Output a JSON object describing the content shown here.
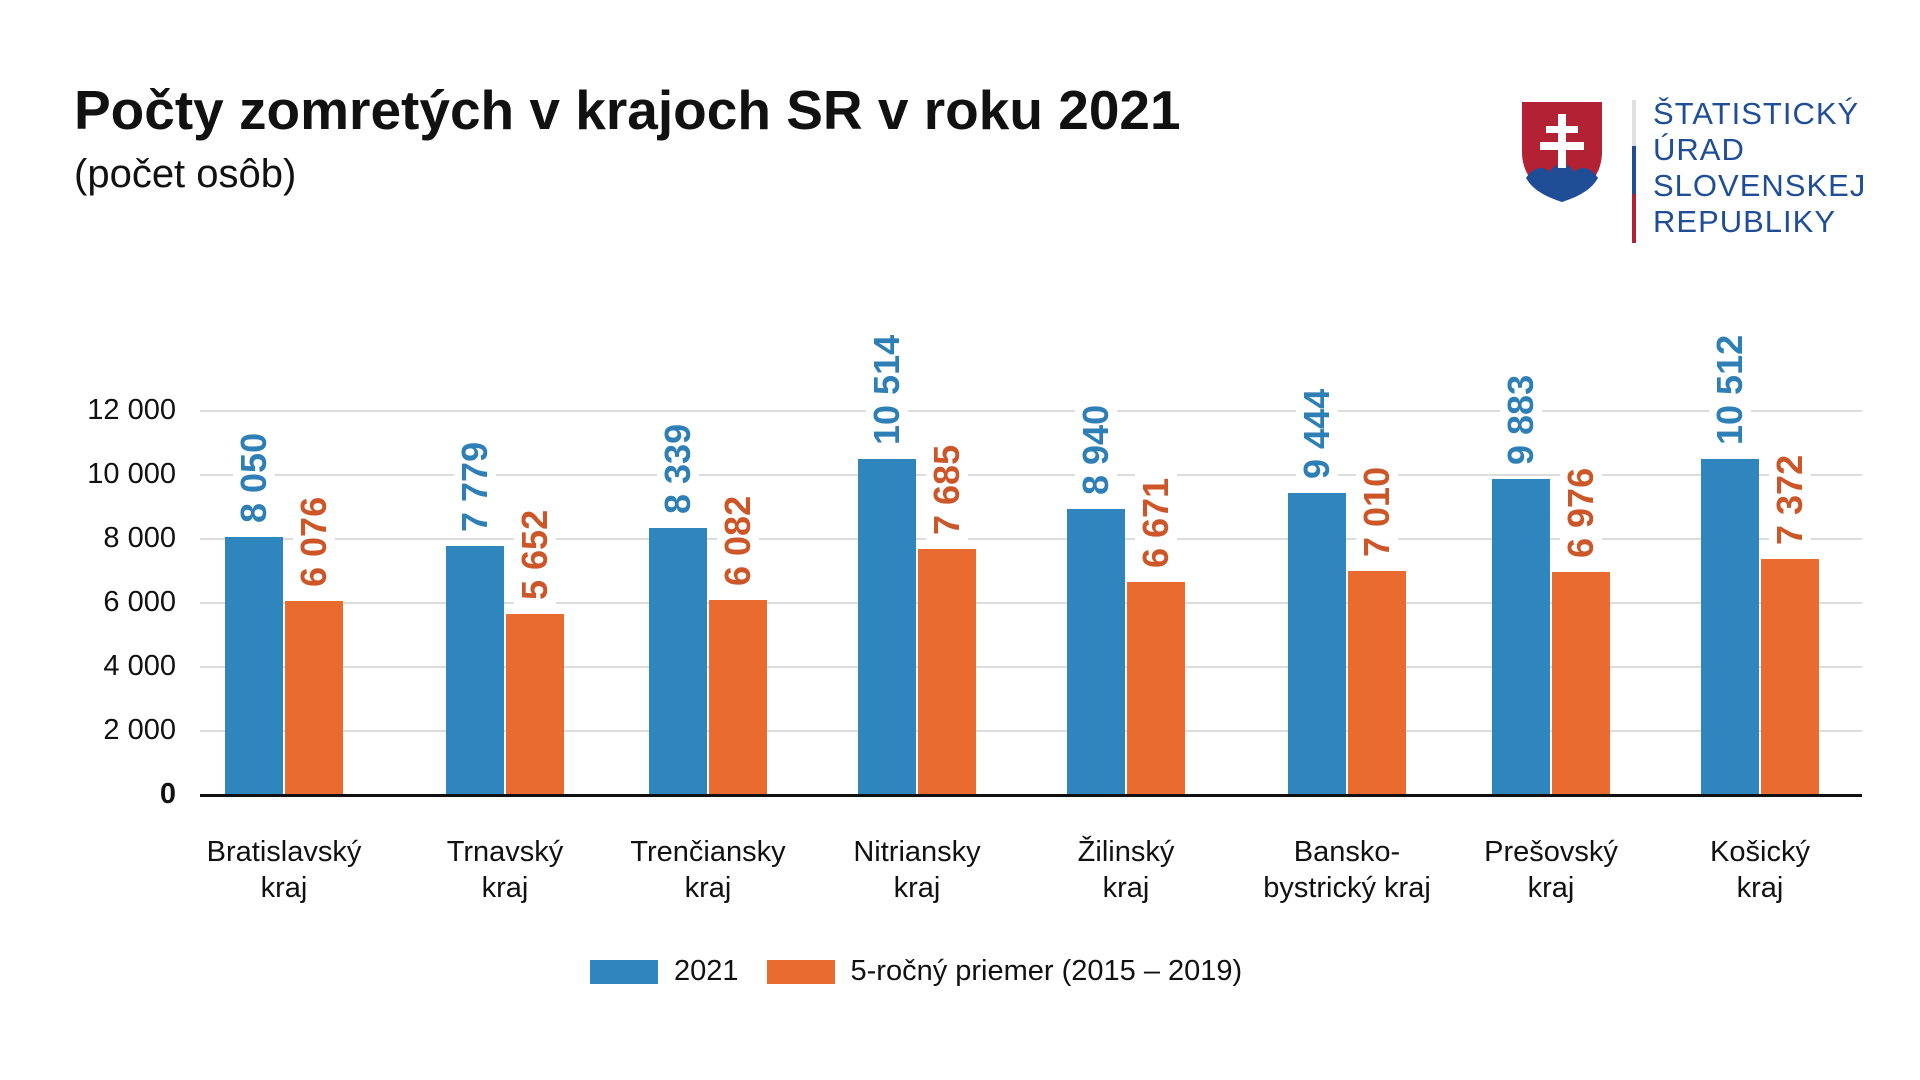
{
  "header": {
    "title": "Počty zomretých v krajoch SR v roku 2021",
    "subtitle": "(počet osôb)"
  },
  "logo": {
    "icon": "slovak-coat-of-arms-icon",
    "lines": [
      "ŠTATISTICKÝ",
      "ÚRAD",
      "SLOVENSKEJ",
      "REPUBLIKY"
    ],
    "colors": {
      "red": "#b22234",
      "blue": "#1f4e96",
      "text": "#1f4e96"
    }
  },
  "colors": {
    "series_2021": "#2e86bd",
    "series_avg": "#ea6b30",
    "label_2021": "#2e7fb5",
    "label_avg": "#cc5628",
    "grid": "#dcdcdc"
  },
  "legend": {
    "items": [
      {
        "label": "2021",
        "color": "#2e86bd"
      },
      {
        "label": "5-ročný priemer (2015 – 2019)",
        "color": "#ea6b30"
      }
    ]
  },
  "chart_data": {
    "type": "bar",
    "title": "Počty zomretých v krajoch SR v roku 2021",
    "subtitle": "(počet osôb)",
    "xlabel": "",
    "ylabel": "",
    "ylim": [
      0,
      12000
    ],
    "yticks": [
      0,
      2000,
      4000,
      6000,
      8000,
      10000,
      12000
    ],
    "ytick_labels": [
      "0",
      "2 000",
      "4 000",
      "6 000",
      "8 000",
      "10 000",
      "12 000"
    ],
    "grid": true,
    "legend_position": "bottom",
    "categories": [
      "Bratislavský kraj",
      "Trnavský kraj",
      "Trenčiansky kraj",
      "Nitriansky kraj",
      "Žilinský kraj",
      "Bansko-bystrický kraj",
      "Prešovský kraj",
      "Košický kraj"
    ],
    "category_lines": [
      [
        "Bratislavský",
        "kraj"
      ],
      [
        "Trnavský",
        "kraj"
      ],
      [
        "Trenčiansky",
        "kraj"
      ],
      [
        "Nitriansky",
        "kraj"
      ],
      [
        "Žilinský",
        "kraj"
      ],
      [
        "Bansko-",
        "bystrický kraj"
      ],
      [
        "Prešovský",
        "kraj"
      ],
      [
        "Košický",
        "kraj"
      ]
    ],
    "series": [
      {
        "name": "2021",
        "values": [
          8050,
          7779,
          8339,
          10514,
          8940,
          9444,
          9883,
          10512
        ],
        "labels": [
          "8 050",
          "7 779",
          "8 339",
          "10 514",
          "8 940",
          "9 444",
          "9 883",
          "10 512"
        ]
      },
      {
        "name": "5-ročný priemer (2015 – 2019)",
        "values": [
          6076,
          5652,
          6082,
          7685,
          6671,
          7010,
          6976,
          7372
        ],
        "labels": [
          "6 076",
          "5 652",
          "6 082",
          "7 685",
          "6 671",
          "7 010",
          "6 976",
          "7 372"
        ]
      }
    ]
  }
}
